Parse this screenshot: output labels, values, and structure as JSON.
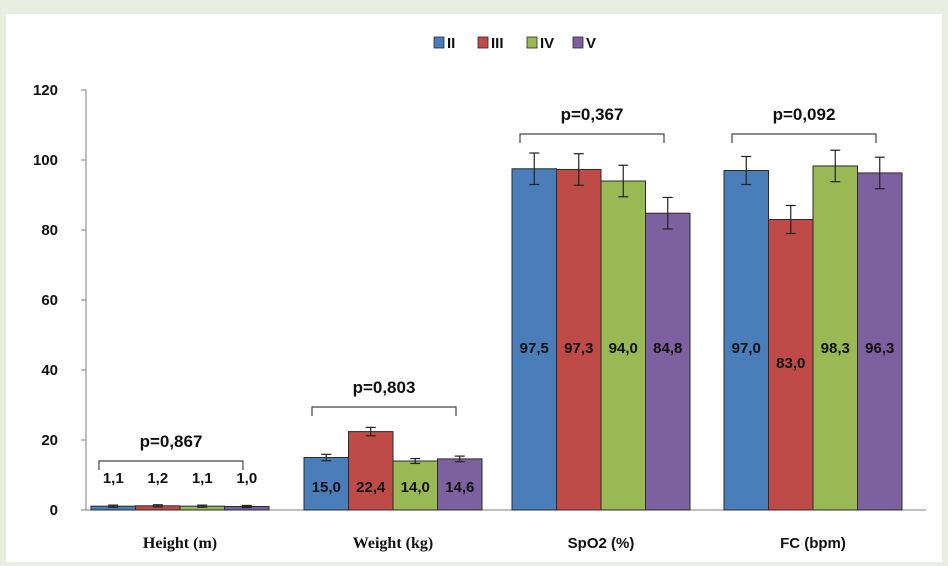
{
  "chart_data": {
    "type": "bar",
    "categories": [
      "Height (m)",
      "Weight (kg)",
      "SpO2 (%)",
      "FC (bpm)"
    ],
    "category_fonts": [
      "serif",
      "serif",
      "sans",
      "sans"
    ],
    "series": [
      {
        "name": "II",
        "color": "#4a7ebb",
        "values": [
          1.1,
          15.0,
          97.5,
          97.0
        ],
        "labels": [
          "1,1",
          "15,0",
          "97,5",
          "97,0"
        ],
        "errors": [
          0.3,
          0.9,
          4.5,
          4.0
        ]
      },
      {
        "name": "III",
        "color": "#be4b48",
        "values": [
          1.2,
          22.4,
          97.3,
          83.0
        ],
        "labels": [
          "1,2",
          "22,4",
          "97,3",
          "83,0"
        ],
        "errors": [
          0.3,
          1.2,
          4.5,
          4.0
        ]
      },
      {
        "name": "IV",
        "color": "#98b954",
        "values": [
          1.1,
          14.0,
          94.0,
          98.3
        ],
        "labels": [
          "1,1",
          "14,0",
          "94,0",
          "98,3"
        ],
        "errors": [
          0.3,
          0.7,
          4.5,
          4.5
        ]
      },
      {
        "name": "V",
        "color": "#7d60a0",
        "values": [
          1.0,
          14.6,
          84.8,
          96.3
        ],
        "labels": [
          "1,0",
          "14,6",
          "84,8",
          "96,3"
        ],
        "errors": [
          0.3,
          0.8,
          4.5,
          4.5
        ]
      }
    ],
    "p_values": [
      "p=0,867",
      "p=0,803",
      "p=0,367",
      "p=0,092"
    ],
    "ylim": [
      0,
      120
    ],
    "yticks": [
      "0",
      "20",
      "40",
      "60",
      "80",
      "100",
      "120"
    ],
    "title": "",
    "xlabel": "",
    "ylabel": "",
    "legend_position": "top-center",
    "grid": false
  }
}
